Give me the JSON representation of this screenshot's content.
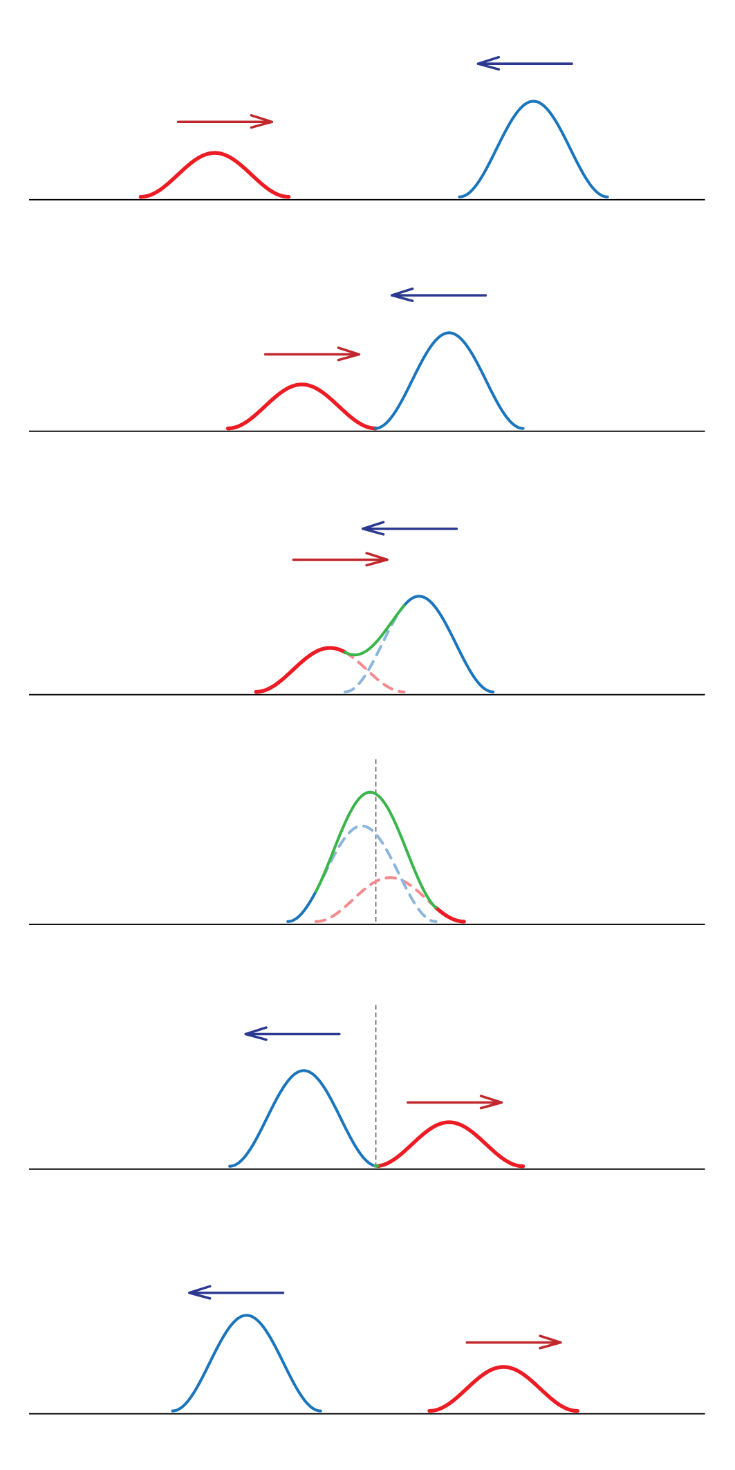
{
  "diagram": {
    "type": "wave-pulse-superposition",
    "panel_count": 6,
    "pulses": {
      "blue": {
        "relative_amplitude": 1.0,
        "direction": "left"
      },
      "red": {
        "relative_amplitude": 0.46,
        "direction": "right"
      }
    },
    "colors": {
      "blue_pulse": "#1b75bc",
      "red_pulse": "#ed1c24",
      "sum_pulse": "#39b54a",
      "blue_dashed": "#8cb6dc",
      "red_dashed": "#f58a8e",
      "blue_arrow": "#2b3990",
      "red_arrow": "#c1272d",
      "baseline": "#000000"
    }
  }
}
